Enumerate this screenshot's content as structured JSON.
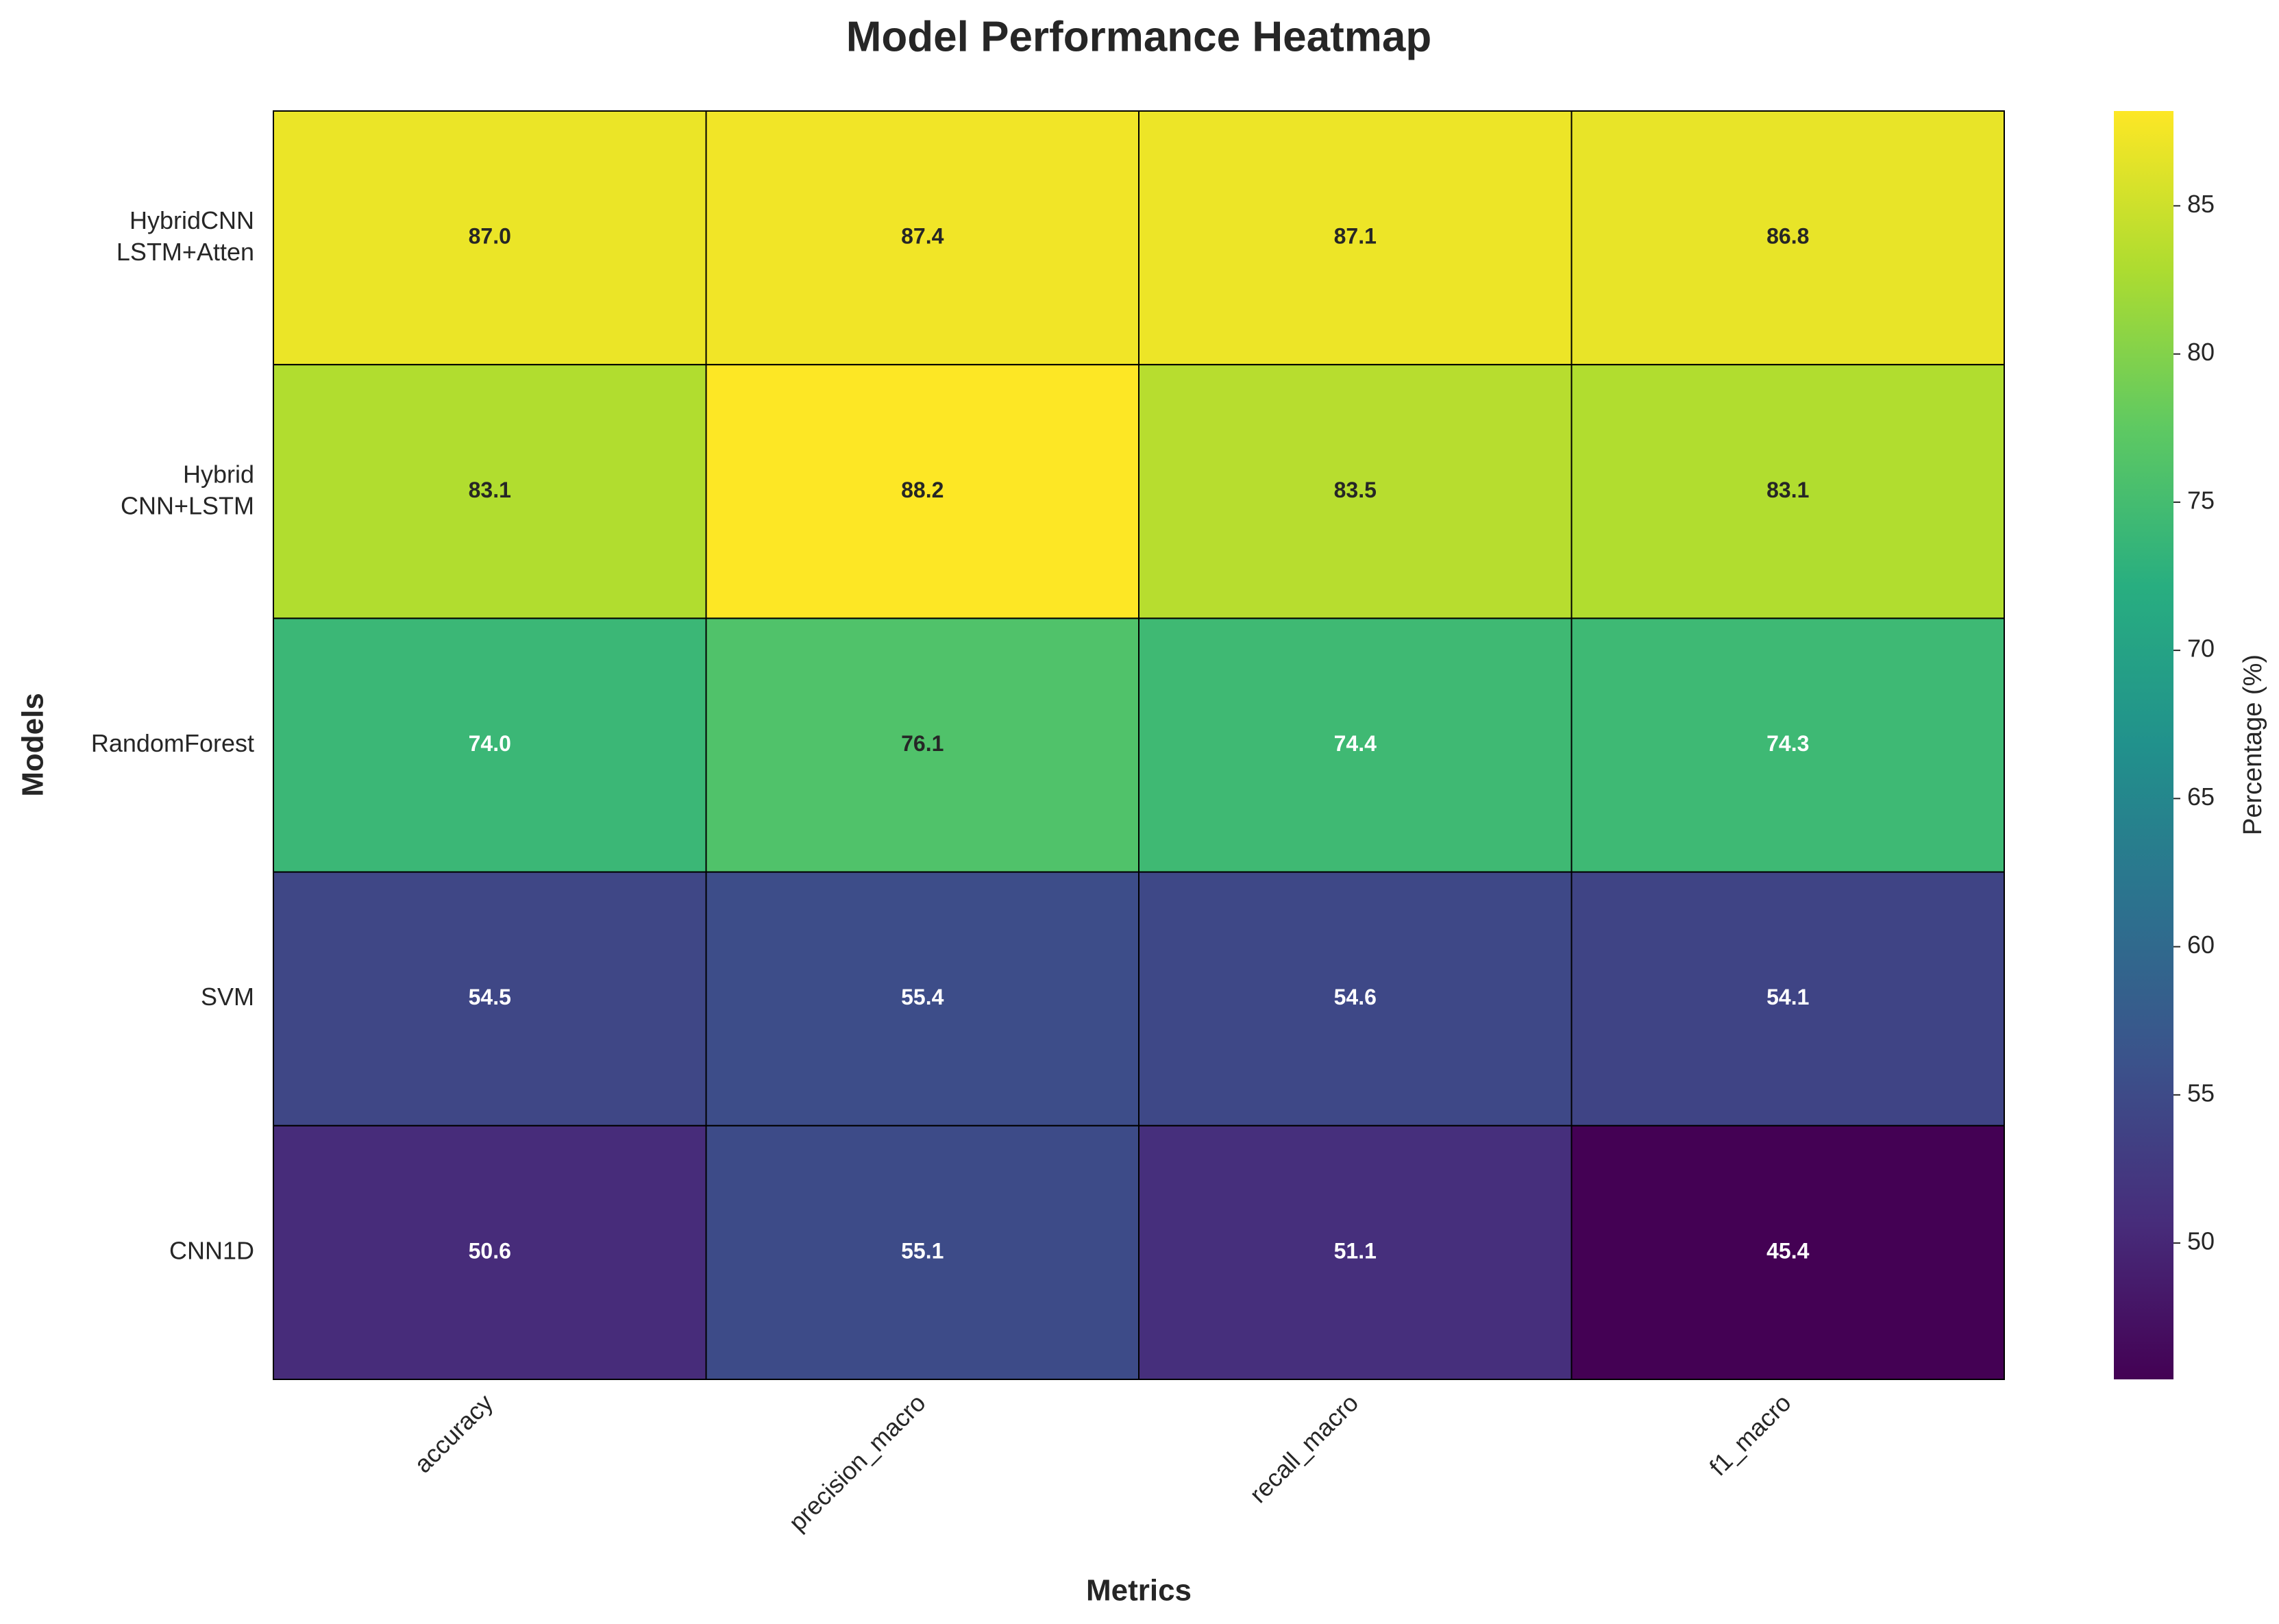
{
  "chart_data": {
    "type": "heatmap",
    "title": "Model Performance Heatmap",
    "x_label": "Metrics",
    "y_label": "Models",
    "x_categories": [
      "accuracy",
      "precision_macro",
      "recall_macro",
      "f1_macro"
    ],
    "y_categories": [
      "HybridCNN\nLSTM+Atten",
      "Hybrid\nCNN+LSTM",
      "RandomForest",
      "SVM",
      "CNN1D"
    ],
    "values": [
      [
        87,
        87.4,
        87.1,
        86.8
      ],
      [
        83.1,
        88.2,
        83.5,
        83.1
      ],
      [
        74,
        76.1,
        74.4,
        74.3
      ],
      [
        54.5,
        55.4,
        54.6,
        54.1
      ],
      [
        50.6,
        55.1,
        51.1,
        45.4
      ]
    ],
    "value_labels": [
      [
        "87.0",
        "87.4",
        "87.1",
        "86.8"
      ],
      [
        "83.1",
        "88.2",
        "83.5",
        "83.1"
      ],
      [
        "74.0",
        "76.1",
        "74.4",
        "74.3"
      ],
      [
        "54.5",
        "55.4",
        "54.6",
        "54.1"
      ],
      [
        "50.6",
        "55.1",
        "51.1",
        "45.4"
      ]
    ],
    "colormap": "viridis",
    "clim": [
      45.4,
      88.2
    ],
    "cticks": [
      50,
      55,
      60,
      65,
      70,
      75,
      80,
      85
    ],
    "colorbar_label": "Percentage (%)"
  }
}
